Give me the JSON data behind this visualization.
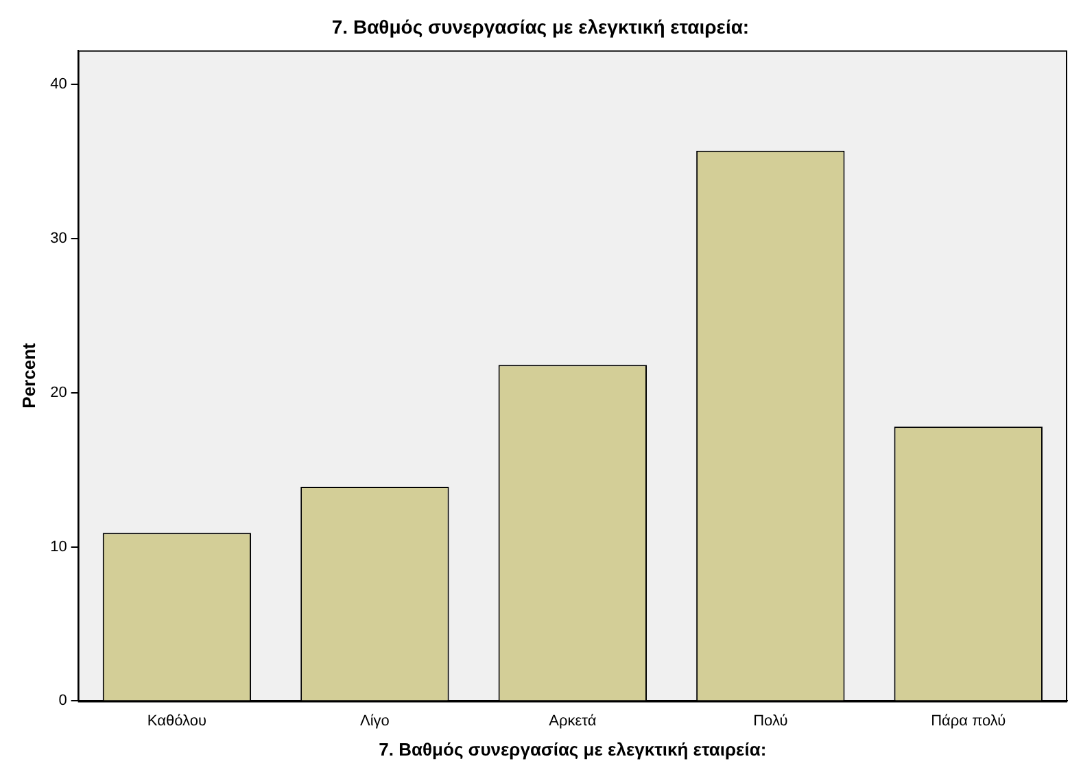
{
  "chart_data": {
    "type": "bar",
    "title": "7. Βαθμός συνεργασίας με ελεγκτική εταιρεία:",
    "xlabel": "7. Βαθμός συνεργασίας με ελεγκτική εταιρεία:",
    "ylabel": "Percent",
    "categories": [
      "Καθόλου",
      "Λίγο",
      "Αρκετά",
      "Πολύ",
      "Πάρα πολύ"
    ],
    "values": [
      10.9,
      13.9,
      21.8,
      35.7,
      17.8
    ],
    "color": "#d3ce97",
    "ylim": [
      0,
      42.2
    ],
    "yticks": [
      0,
      10,
      20,
      30,
      40
    ],
    "grid": false,
    "legend": false
  }
}
